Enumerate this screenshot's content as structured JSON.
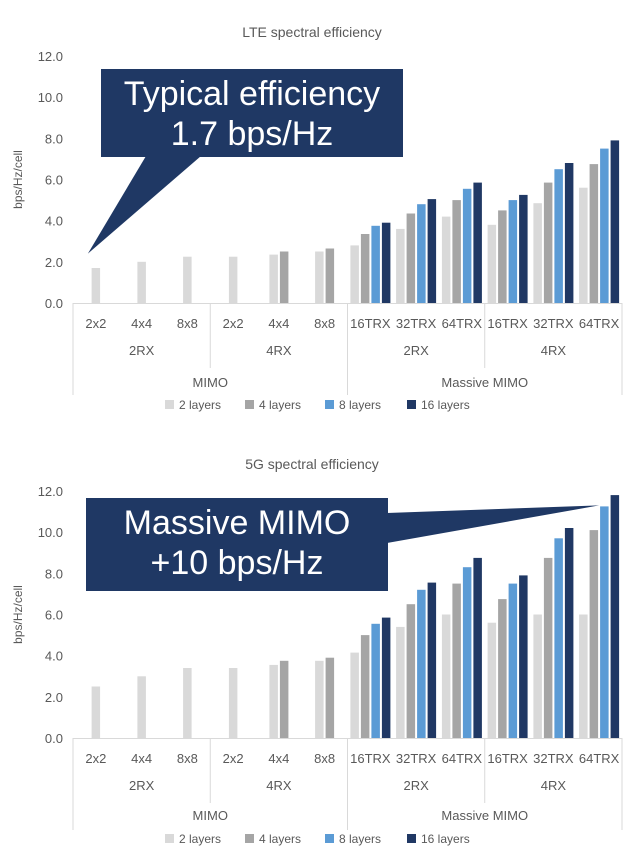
{
  "colors": {
    "layers2": "#d9d9d9",
    "layers4": "#a5a5a5",
    "layers8": "#5b9bd5",
    "layers16": "#203864",
    "callout": "#1f3864",
    "callout_text": "#ffffff",
    "axis_text": "#595959",
    "grid": "#d9d9d9"
  },
  "legend": [
    "2 layers",
    "4 layers",
    "8 layers",
    "16 layers"
  ],
  "chart_data": [
    {
      "type": "bar",
      "title": "LTE spectral efficiency",
      "ylabel": "bps/Hz/cell",
      "ylim": [
        0,
        12
      ],
      "yticks": [
        "0.0",
        "2.0",
        "4.0",
        "6.0",
        "8.0",
        "10.0",
        "12.0"
      ],
      "categories": [
        "2x2",
        "4x4",
        "8x8",
        "2x2",
        "4x4",
        "8x8",
        "16TRX",
        "32TRX",
        "64TRX",
        "16TRX",
        "32TRX",
        "64TRX"
      ],
      "groups": [
        {
          "label": "2RX",
          "span": [
            0,
            2
          ]
        },
        {
          "label": "4RX",
          "span": [
            3,
            5
          ]
        },
        {
          "label": "2RX",
          "span": [
            6,
            8
          ]
        },
        {
          "label": "4RX",
          "span": [
            9,
            11
          ]
        }
      ],
      "supergroups": [
        {
          "label": "MIMO",
          "span": [
            0,
            5
          ]
        },
        {
          "label": "Massive MIMO",
          "span": [
            6,
            11
          ]
        }
      ],
      "series": [
        {
          "name": "2 layers",
          "values": [
            1.7,
            2.0,
            2.25,
            2.25,
            2.35,
            2.5,
            2.8,
            3.6,
            4.2,
            3.8,
            4.85,
            5.6
          ]
        },
        {
          "name": "4 layers",
          "values": [
            null,
            null,
            null,
            null,
            2.5,
            2.65,
            3.35,
            4.35,
            5.0,
            4.5,
            5.85,
            6.75
          ]
        },
        {
          "name": "8 layers",
          "values": [
            null,
            null,
            null,
            null,
            null,
            null,
            3.75,
            4.8,
            5.55,
            5.0,
            6.5,
            7.5
          ]
        },
        {
          "name": "16 layers",
          "values": [
            null,
            null,
            null,
            null,
            null,
            null,
            3.9,
            5.05,
            5.85,
            5.25,
            6.8,
            7.9
          ]
        }
      ],
      "callout": {
        "lines": [
          "Typical efficiency",
          "1.7 bps/Hz"
        ],
        "target_category": 0,
        "target_value": 2.4
      }
    },
    {
      "type": "bar",
      "title": "5G spectral efficiency",
      "ylabel": "bps/Hz/cell",
      "ylim": [
        0,
        12
      ],
      "yticks": [
        "0.0",
        "2.0",
        "4.0",
        "6.0",
        "8.0",
        "10.0",
        "12.0"
      ],
      "categories": [
        "2x2",
        "4x4",
        "8x8",
        "2x2",
        "4x4",
        "8x8",
        "16TRX",
        "32TRX",
        "64TRX",
        "16TRX",
        "32TRX",
        "64TRX"
      ],
      "groups": [
        {
          "label": "2RX",
          "span": [
            0,
            2
          ]
        },
        {
          "label": "4RX",
          "span": [
            3,
            5
          ]
        },
        {
          "label": "2RX",
          "span": [
            6,
            8
          ]
        },
        {
          "label": "4RX",
          "span": [
            9,
            11
          ]
        }
      ],
      "supergroups": [
        {
          "label": "MIMO",
          "span": [
            0,
            5
          ]
        },
        {
          "label": "Massive MIMO",
          "span": [
            6,
            11
          ]
        }
      ],
      "series": [
        {
          "name": "2 layers",
          "values": [
            2.5,
            3.0,
            3.4,
            3.4,
            3.55,
            3.75,
            4.15,
            5.4,
            6.0,
            5.6,
            6.0,
            6.0
          ]
        },
        {
          "name": "4 layers",
          "values": [
            null,
            null,
            null,
            null,
            3.75,
            3.9,
            5.0,
            6.5,
            7.5,
            6.75,
            8.75,
            10.1
          ]
        },
        {
          "name": "8 layers",
          "values": [
            null,
            null,
            null,
            null,
            null,
            null,
            5.55,
            7.2,
            8.3,
            7.5,
            9.7,
            11.25
          ]
        },
        {
          "name": "16 layers",
          "values": [
            null,
            null,
            null,
            null,
            null,
            null,
            5.85,
            7.55,
            8.75,
            7.9,
            10.2,
            11.8
          ]
        }
      ],
      "callout": {
        "lines": [
          "Massive MIMO",
          "+10 bps/Hz"
        ],
        "target_category": 11,
        "target_value": 11.3
      }
    }
  ]
}
